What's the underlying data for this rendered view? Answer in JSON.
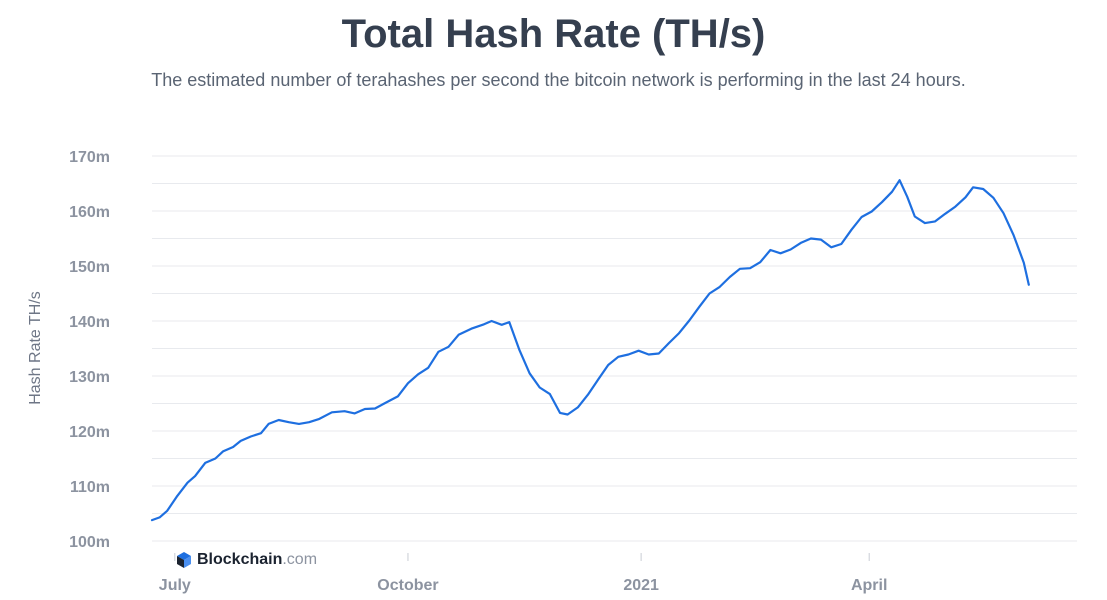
{
  "chart_data": {
    "type": "line",
    "title": "Total Hash Rate (TH/s)",
    "subtitle": "The estimated number of terahashes per second the bitcoin network is performing in the last 24 hours.",
    "ylabel": "Hash Rate TH/s",
    "xlabel": "",
    "ylim": [
      100,
      170
    ],
    "yticks": [
      {
        "value": 100,
        "label": "100m"
      },
      {
        "value": 110,
        "label": "110m"
      },
      {
        "value": 120,
        "label": "120m"
      },
      {
        "value": 130,
        "label": "130m"
      },
      {
        "value": 140,
        "label": "140m"
      },
      {
        "value": 150,
        "label": "150m"
      },
      {
        "value": 160,
        "label": "160m"
      },
      {
        "value": 170,
        "label": "170m"
      }
    ],
    "xlim": [
      "2020-06-22",
      "2021-06-22"
    ],
    "xticks": [
      {
        "date": "2020-07-01",
        "label": "July"
      },
      {
        "date": "2020-10-01",
        "label": "October"
      },
      {
        "date": "2021-01-01",
        "label": "2021"
      },
      {
        "date": "2021-04-01",
        "label": "April"
      }
    ],
    "grid": true,
    "series": [
      {
        "color": "#1E6FE0",
        "points": [
          [
            "2020-06-22",
            103.8
          ],
          [
            "2020-06-25",
            104.3
          ],
          [
            "2020-06-28",
            105.5
          ],
          [
            "2020-07-02",
            108.2
          ],
          [
            "2020-07-06",
            110.6
          ],
          [
            "2020-07-09",
            111.8
          ],
          [
            "2020-07-13",
            114.2
          ],
          [
            "2020-07-17",
            115.0
          ],
          [
            "2020-07-20",
            116.3
          ],
          [
            "2020-07-24",
            117.1
          ],
          [
            "2020-07-27",
            118.2
          ],
          [
            "2020-07-31",
            119.0
          ],
          [
            "2020-08-04",
            119.6
          ],
          [
            "2020-08-07",
            121.3
          ],
          [
            "2020-08-11",
            122.0
          ],
          [
            "2020-08-15",
            121.6
          ],
          [
            "2020-08-19",
            121.3
          ],
          [
            "2020-08-23",
            121.6
          ],
          [
            "2020-08-27",
            122.2
          ],
          [
            "2020-09-01",
            123.4
          ],
          [
            "2020-09-06",
            123.6
          ],
          [
            "2020-09-10",
            123.2
          ],
          [
            "2020-09-14",
            124.0
          ],
          [
            "2020-09-18",
            124.1
          ],
          [
            "2020-09-22",
            125.1
          ],
          [
            "2020-09-27",
            126.3
          ],
          [
            "2020-10-01",
            128.7
          ],
          [
            "2020-10-05",
            130.3
          ],
          [
            "2020-10-09",
            131.5
          ],
          [
            "2020-10-13",
            134.4
          ],
          [
            "2020-10-17",
            135.3
          ],
          [
            "2020-10-21",
            137.5
          ],
          [
            "2020-10-26",
            138.6
          ],
          [
            "2020-10-31",
            139.4
          ],
          [
            "2020-11-03",
            140.0
          ],
          [
            "2020-11-07",
            139.3
          ],
          [
            "2020-11-10",
            139.8
          ],
          [
            "2020-11-14",
            134.7
          ],
          [
            "2020-11-18",
            130.5
          ],
          [
            "2020-11-22",
            127.9
          ],
          [
            "2020-11-26",
            126.7
          ],
          [
            "2020-11-30",
            123.3
          ],
          [
            "2020-12-03",
            123.0
          ],
          [
            "2020-12-07",
            124.3
          ],
          [
            "2020-12-11",
            126.6
          ],
          [
            "2020-12-15",
            129.3
          ],
          [
            "2020-12-19",
            132.0
          ],
          [
            "2020-12-23",
            133.5
          ],
          [
            "2020-12-27",
            133.9
          ],
          [
            "2020-12-31",
            134.6
          ],
          [
            "2021-01-04",
            133.9
          ],
          [
            "2021-01-08",
            134.1
          ],
          [
            "2021-01-12",
            136.0
          ],
          [
            "2021-01-16",
            137.8
          ],
          [
            "2021-01-20",
            140.1
          ],
          [
            "2021-01-24",
            142.6
          ],
          [
            "2021-01-28",
            145.0
          ],
          [
            "2021-02-01",
            146.2
          ],
          [
            "2021-02-05",
            148.0
          ],
          [
            "2021-02-09",
            149.5
          ],
          [
            "2021-02-13",
            149.6
          ],
          [
            "2021-02-17",
            150.7
          ],
          [
            "2021-02-21",
            152.9
          ],
          [
            "2021-02-25",
            152.3
          ],
          [
            "2021-03-01",
            153.0
          ],
          [
            "2021-03-05",
            154.2
          ],
          [
            "2021-03-09",
            155.0
          ],
          [
            "2021-03-13",
            154.8
          ],
          [
            "2021-03-17",
            153.4
          ],
          [
            "2021-03-21",
            154.0
          ],
          [
            "2021-03-25",
            156.6
          ],
          [
            "2021-03-29",
            158.9
          ],
          [
            "2021-04-02",
            159.9
          ],
          [
            "2021-04-06",
            161.6
          ],
          [
            "2021-04-10",
            163.5
          ],
          [
            "2021-04-13",
            165.6
          ],
          [
            "2021-04-16",
            162.6
          ],
          [
            "2021-04-19",
            159.0
          ],
          [
            "2021-04-23",
            157.8
          ],
          [
            "2021-04-27",
            158.1
          ],
          [
            "2021-05-01",
            159.5
          ],
          [
            "2021-05-05",
            160.8
          ],
          [
            "2021-05-09",
            162.5
          ],
          [
            "2021-05-12",
            164.3
          ],
          [
            "2021-05-16",
            164.0
          ],
          [
            "2021-05-20",
            162.4
          ],
          [
            "2021-05-24",
            159.6
          ],
          [
            "2021-05-28",
            155.6
          ],
          [
            "2021-06-01",
            150.6
          ],
          [
            "2021-06-03",
            146.6
          ]
        ]
      }
    ]
  },
  "watermark": {
    "brand": "Blockchain",
    "suffix": ".com",
    "icon": "blockchain-cube-icon",
    "brand_color": "#1B2330",
    "accent_color": "#1E6FE0"
  }
}
